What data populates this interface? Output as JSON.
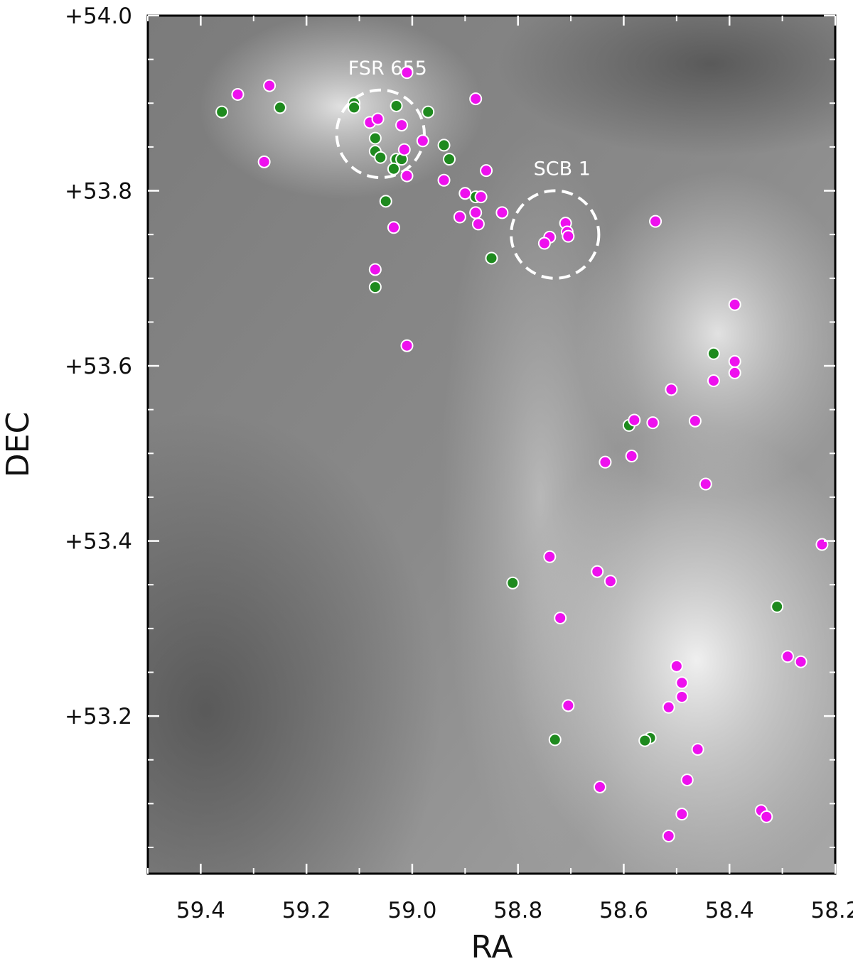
{
  "chart_data": {
    "type": "scatter",
    "xlabel": "RA",
    "ylabel": "DEC",
    "xlim": [
      59.5,
      58.2
    ],
    "ylim": [
      53.02,
      54.0
    ],
    "x_inverted": true,
    "x_ticks": [
      {
        "v": 59.4,
        "label": "59.4"
      },
      {
        "v": 59.2,
        "label": "59.2"
      },
      {
        "v": 59.0,
        "label": "59.0"
      },
      {
        "v": 58.8,
        "label": "58.8"
      },
      {
        "v": 58.6,
        "label": "58.6"
      },
      {
        "v": 58.4,
        "label": "58.4"
      },
      {
        "v": 58.2,
        "label": "58.2"
      }
    ],
    "y_ticks": [
      {
        "v": 54.0,
        "label": "+54.0"
      },
      {
        "v": 53.8,
        "label": "+53.8"
      },
      {
        "v": 53.6,
        "label": "+53.6"
      },
      {
        "v": 53.4,
        "label": "+53.4"
      },
      {
        "v": 53.2,
        "label": "+53.2"
      }
    ],
    "grid": false,
    "background": "grayscale sky image",
    "annotations": [
      {
        "label": "FSR 655",
        "ra": 59.06,
        "dec": 53.865,
        "radius": 0.05
      },
      {
        "label": "SCB 1",
        "ra": 58.73,
        "dec": 53.75,
        "radius": 0.05
      }
    ],
    "series": [
      {
        "color": "#1e8a1e",
        "points": [
          {
            "x": 59.36,
            "y": 53.89
          },
          {
            "x": 59.25,
            "y": 53.895
          },
          {
            "x": 59.11,
            "y": 53.9
          },
          {
            "x": 59.11,
            "y": 53.895
          },
          {
            "x": 59.03,
            "y": 53.897
          },
          {
            "x": 58.97,
            "y": 53.89
          },
          {
            "x": 59.07,
            "y": 53.86
          },
          {
            "x": 59.07,
            "y": 53.845
          },
          {
            "x": 59.06,
            "y": 53.838
          },
          {
            "x": 59.03,
            "y": 53.836
          },
          {
            "x": 59.02,
            "y": 53.836
          },
          {
            "x": 59.035,
            "y": 53.825
          },
          {
            "x": 58.94,
            "y": 53.852
          },
          {
            "x": 58.93,
            "y": 53.836
          },
          {
            "x": 59.05,
            "y": 53.788
          },
          {
            "x": 58.88,
            "y": 53.793
          },
          {
            "x": 58.85,
            "y": 53.723
          },
          {
            "x": 59.07,
            "y": 53.69
          },
          {
            "x": 58.81,
            "y": 53.352
          },
          {
            "x": 58.73,
            "y": 53.173
          },
          {
            "x": 58.59,
            "y": 53.532
          },
          {
            "x": 58.43,
            "y": 53.614
          },
          {
            "x": 58.31,
            "y": 53.325
          },
          {
            "x": 58.55,
            "y": 53.175
          },
          {
            "x": 58.56,
            "y": 53.172
          }
        ]
      },
      {
        "color": "#ee10ee",
        "points": [
          {
            "x": 59.33,
            "y": 53.91
          },
          {
            "x": 59.27,
            "y": 53.92
          },
          {
            "x": 59.28,
            "y": 53.833
          },
          {
            "x": 59.01,
            "y": 53.935
          },
          {
            "x": 58.88,
            "y": 53.905
          },
          {
            "x": 59.08,
            "y": 53.878
          },
          {
            "x": 59.065,
            "y": 53.882
          },
          {
            "x": 59.02,
            "y": 53.875
          },
          {
            "x": 58.98,
            "y": 53.857
          },
          {
            "x": 59.015,
            "y": 53.847
          },
          {
            "x": 58.86,
            "y": 53.823
          },
          {
            "x": 59.01,
            "y": 53.817
          },
          {
            "x": 58.94,
            "y": 53.812
          },
          {
            "x": 58.9,
            "y": 53.797
          },
          {
            "x": 58.87,
            "y": 53.793
          },
          {
            "x": 58.83,
            "y": 53.775
          },
          {
            "x": 58.88,
            "y": 53.775
          },
          {
            "x": 58.91,
            "y": 53.77
          },
          {
            "x": 58.875,
            "y": 53.762
          },
          {
            "x": 59.035,
            "y": 53.758
          },
          {
            "x": 58.71,
            "y": 53.763
          },
          {
            "x": 58.707,
            "y": 53.753
          },
          {
            "x": 58.705,
            "y": 53.748
          },
          {
            "x": 58.74,
            "y": 53.747
          },
          {
            "x": 58.75,
            "y": 53.74
          },
          {
            "x": 58.54,
            "y": 53.765
          },
          {
            "x": 59.07,
            "y": 53.71
          },
          {
            "x": 58.39,
            "y": 53.67
          },
          {
            "x": 59.01,
            "y": 53.623
          },
          {
            "x": 58.39,
            "y": 53.605
          },
          {
            "x": 58.39,
            "y": 53.592
          },
          {
            "x": 58.43,
            "y": 53.583
          },
          {
            "x": 58.51,
            "y": 53.573
          },
          {
            "x": 58.58,
            "y": 53.538
          },
          {
            "x": 58.545,
            "y": 53.535
          },
          {
            "x": 58.465,
            "y": 53.537
          },
          {
            "x": 58.585,
            "y": 53.497
          },
          {
            "x": 58.635,
            "y": 53.49
          },
          {
            "x": 58.445,
            "y": 53.465
          },
          {
            "x": 58.225,
            "y": 53.396
          },
          {
            "x": 58.74,
            "y": 53.382
          },
          {
            "x": 58.65,
            "y": 53.365
          },
          {
            "x": 58.625,
            "y": 53.354
          },
          {
            "x": 58.72,
            "y": 53.312
          },
          {
            "x": 58.29,
            "y": 53.268
          },
          {
            "x": 58.265,
            "y": 53.262
          },
          {
            "x": 58.5,
            "y": 53.257
          },
          {
            "x": 58.49,
            "y": 53.238
          },
          {
            "x": 58.49,
            "y": 53.222
          },
          {
            "x": 58.515,
            "y": 53.21
          },
          {
            "x": 58.705,
            "y": 53.212
          },
          {
            "x": 58.46,
            "y": 53.162
          },
          {
            "x": 58.48,
            "y": 53.127
          },
          {
            "x": 58.645,
            "y": 53.119
          },
          {
            "x": 58.34,
            "y": 53.092
          },
          {
            "x": 58.33,
            "y": 53.085
          },
          {
            "x": 58.49,
            "y": 53.088
          },
          {
            "x": 58.515,
            "y": 53.063
          }
        ]
      }
    ]
  }
}
